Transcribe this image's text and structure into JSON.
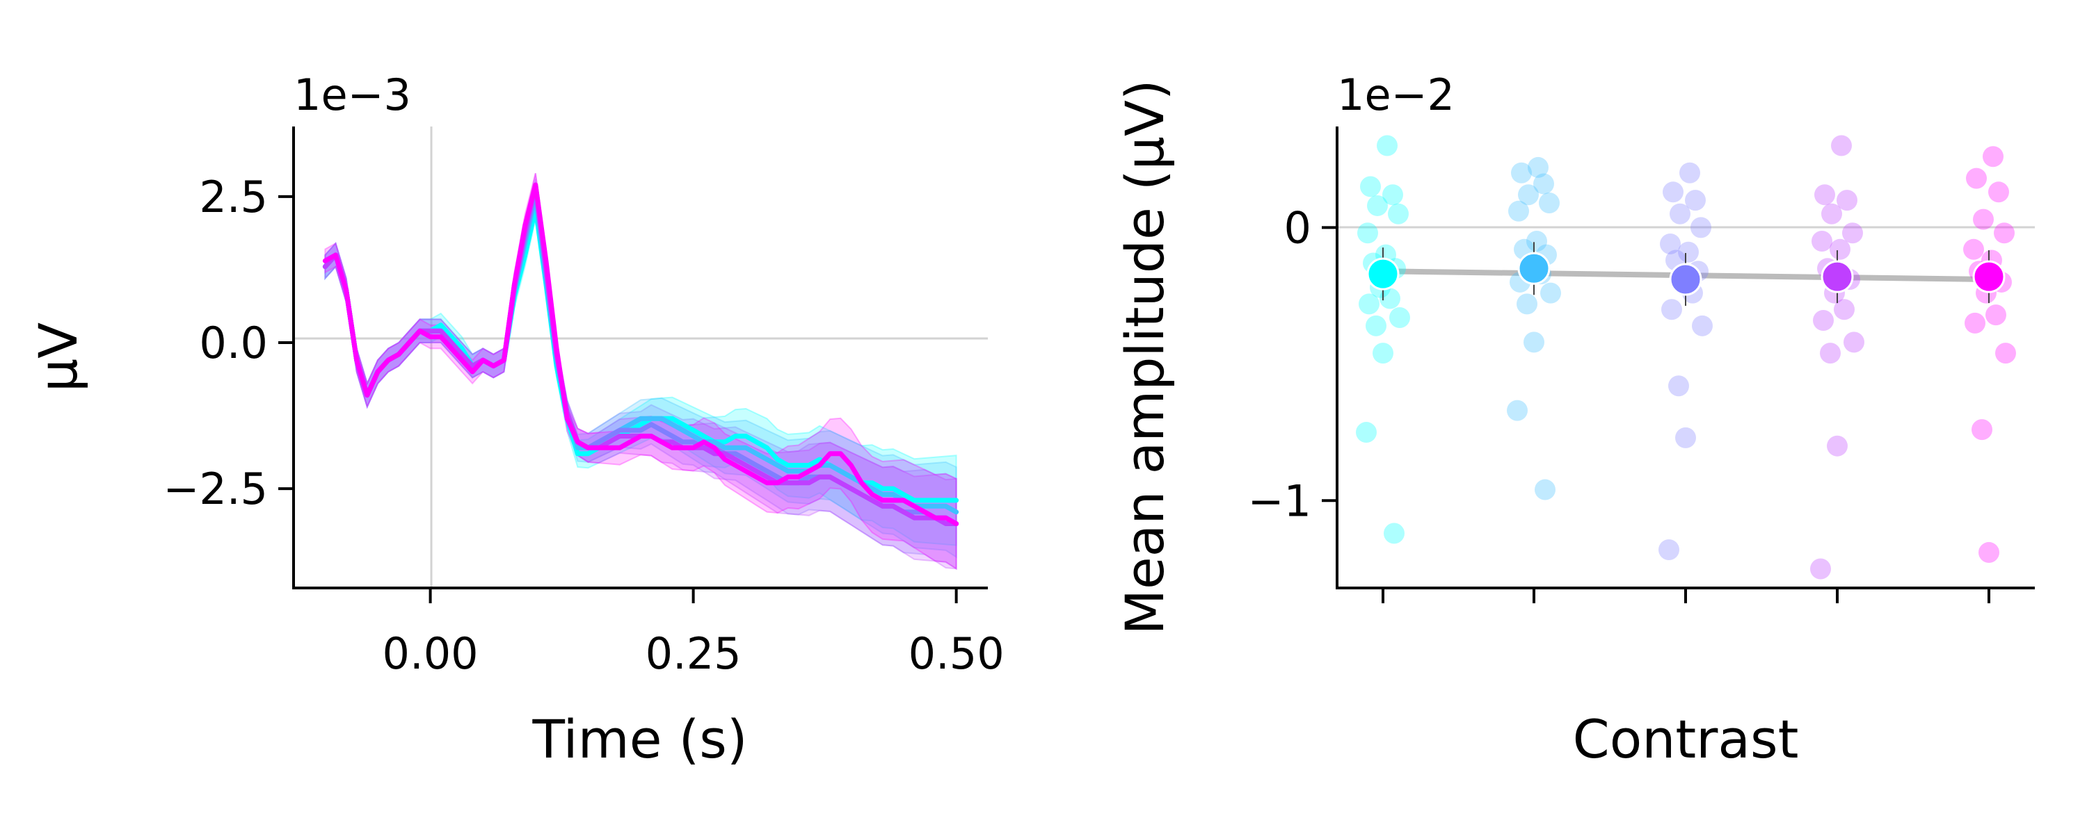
{
  "chart_data": [
    {
      "type": "line",
      "xlabel": "Time (s)",
      "ylabel": "μV",
      "y_multiplier_label": "1e−3",
      "xlim": [
        -0.13,
        0.53
      ],
      "ylim": [
        -4.2,
        3.7
      ],
      "x_ticks": [
        0.0,
        0.25,
        0.5
      ],
      "x_tick_labels": [
        "0.00",
        "0.25",
        "0.50"
      ],
      "y_ticks": [
        2.5,
        0.0,
        -2.5
      ],
      "y_tick_labels": [
        "2.5",
        "0.0",
        "−2.5"
      ],
      "reference_lines": {
        "x": 0,
        "y": 0
      },
      "x": [
        -0.1,
        -0.09,
        -0.08,
        -0.07,
        -0.06,
        -0.05,
        -0.04,
        -0.03,
        -0.02,
        -0.01,
        0.0,
        0.01,
        0.02,
        0.03,
        0.04,
        0.05,
        0.06,
        0.07,
        0.08,
        0.09,
        0.1,
        0.11,
        0.12,
        0.13,
        0.14,
        0.15,
        0.16,
        0.17,
        0.18,
        0.19,
        0.2,
        0.21,
        0.22,
        0.23,
        0.24,
        0.25,
        0.26,
        0.27,
        0.28,
        0.29,
        0.3,
        0.31,
        0.32,
        0.33,
        0.34,
        0.35,
        0.36,
        0.37,
        0.38,
        0.39,
        0.4,
        0.41,
        0.42,
        0.43,
        0.44,
        0.45,
        0.46,
        0.47,
        0.48,
        0.49,
        0.5
      ],
      "series": [
        {
          "color": "#00ffff",
          "values": [
            1.3,
            1.5,
            0.9,
            -0.3,
            -0.9,
            -0.5,
            -0.3,
            -0.2,
            0.0,
            0.2,
            0.2,
            0.3,
            0.1,
            -0.1,
            -0.4,
            -0.3,
            -0.4,
            -0.3,
            0.8,
            1.5,
            2.3,
            1.0,
            -0.4,
            -1.3,
            -1.9,
            -1.9,
            -1.8,
            -1.7,
            -1.6,
            -1.5,
            -1.4,
            -1.3,
            -1.3,
            -1.3,
            -1.4,
            -1.5,
            -1.6,
            -1.7,
            -1.7,
            -1.6,
            -1.6,
            -1.7,
            -1.8,
            -2.0,
            -2.1,
            -2.1,
            -2.1,
            -2.0,
            -2.1,
            -2.2,
            -2.3,
            -2.4,
            -2.4,
            -2.5,
            -2.5,
            -2.6,
            -2.7,
            -2.7,
            -2.7,
            -2.7,
            -2.7
          ]
        },
        {
          "color": "#3fbfff",
          "values": [
            1.3,
            1.5,
            0.9,
            -0.3,
            -0.9,
            -0.5,
            -0.3,
            -0.2,
            0.0,
            0.2,
            0.2,
            0.2,
            0.0,
            -0.2,
            -0.4,
            -0.3,
            -0.4,
            -0.3,
            0.9,
            1.7,
            2.5,
            1.1,
            -0.3,
            -1.2,
            -1.8,
            -1.8,
            -1.7,
            -1.6,
            -1.5,
            -1.4,
            -1.3,
            -1.3,
            -1.3,
            -1.4,
            -1.5,
            -1.6,
            -1.7,
            -1.7,
            -1.8,
            -1.8,
            -1.8,
            -1.9,
            -2.0,
            -2.1,
            -2.2,
            -2.2,
            -2.2,
            -2.1,
            -2.1,
            -2.2,
            -2.3,
            -2.4,
            -2.5,
            -2.6,
            -2.6,
            -2.7,
            -2.8,
            -2.8,
            -2.8,
            -2.8,
            -2.9
          ]
        },
        {
          "color": "#7f7fff",
          "values": [
            1.3,
            1.5,
            0.9,
            -0.3,
            -0.9,
            -0.5,
            -0.3,
            -0.2,
            0.0,
            0.2,
            0.2,
            0.2,
            0.0,
            -0.2,
            -0.4,
            -0.3,
            -0.4,
            -0.3,
            0.9,
            1.8,
            2.6,
            1.2,
            -0.2,
            -1.2,
            -1.7,
            -1.8,
            -1.7,
            -1.6,
            -1.5,
            -1.5,
            -1.5,
            -1.4,
            -1.5,
            -1.6,
            -1.7,
            -1.7,
            -1.8,
            -1.8,
            -1.9,
            -1.9,
            -2.0,
            -2.1,
            -2.2,
            -2.3,
            -2.4,
            -2.4,
            -2.3,
            -2.3,
            -2.3,
            -2.4,
            -2.5,
            -2.6,
            -2.7,
            -2.8,
            -2.8,
            -2.9,
            -2.9,
            -2.9,
            -3.0,
            -3.0,
            -3.1
          ]
        },
        {
          "color": "#bf3fff",
          "values": [
            1.3,
            1.5,
            0.9,
            -0.3,
            -0.9,
            -0.5,
            -0.3,
            -0.2,
            0.0,
            0.2,
            0.2,
            0.2,
            0.0,
            -0.2,
            -0.4,
            -0.3,
            -0.4,
            -0.3,
            1.0,
            1.9,
            2.7,
            1.3,
            -0.2,
            -1.2,
            -1.7,
            -1.8,
            -1.8,
            -1.7,
            -1.6,
            -1.6,
            -1.6,
            -1.6,
            -1.7,
            -1.7,
            -1.8,
            -1.8,
            -1.8,
            -1.9,
            -1.9,
            -2.0,
            -2.1,
            -2.2,
            -2.3,
            -2.4,
            -2.4,
            -2.4,
            -2.4,
            -2.3,
            -2.3,
            -2.4,
            -2.5,
            -2.6,
            -2.7,
            -2.8,
            -2.8,
            -2.9,
            -3.0,
            -3.0,
            -3.0,
            -3.1,
            -3.1
          ]
        },
        {
          "color": "#ff00ff",
          "values": [
            1.4,
            1.5,
            0.9,
            -0.3,
            -0.9,
            -0.5,
            -0.3,
            -0.2,
            0.0,
            0.2,
            0.1,
            0.1,
            -0.1,
            -0.3,
            -0.5,
            -0.3,
            -0.4,
            -0.3,
            1.0,
            2.0,
            2.7,
            1.4,
            -0.1,
            -1.3,
            -1.7,
            -1.8,
            -1.8,
            -1.8,
            -1.8,
            -1.7,
            -1.6,
            -1.6,
            -1.7,
            -1.8,
            -1.8,
            -1.8,
            -1.7,
            -1.8,
            -2.0,
            -2.1,
            -2.2,
            -2.3,
            -2.4,
            -2.4,
            -2.3,
            -2.3,
            -2.2,
            -2.1,
            -1.9,
            -1.9,
            -2.1,
            -2.4,
            -2.6,
            -2.7,
            -2.7,
            -2.7,
            -2.8,
            -2.9,
            -3.0,
            -3.0,
            -3.1
          ]
        }
      ]
    },
    {
      "type": "scatter",
      "xlabel": "Contrast",
      "ylabel": "Mean amplitude (μV)",
      "y_multiplier_label": "1e−2",
      "ylim": [
        -1.32,
        0.37
      ],
      "y_ticks": [
        0,
        -1
      ],
      "y_tick_labels": [
        "0",
        "−1"
      ],
      "reference_lines": {
        "y": 0
      },
      "categories": [
        "",
        "",
        "",
        "",
        ""
      ],
      "colors": [
        "#00ffff",
        "#3fbfff",
        "#7f7fff",
        "#bf3fff",
        "#ff00ff"
      ],
      "means": [
        -0.17,
        -0.15,
        -0.19,
        -0.18,
        -0.18
      ],
      "trend": [
        -0.16,
        -0.19
      ],
      "points": [
        [
          0.3,
          0.15,
          0.12,
          0.08,
          0.05,
          -0.02,
          -0.1,
          -0.13,
          -0.15,
          -0.22,
          -0.26,
          -0.28,
          -0.33,
          -0.36,
          -0.46,
          -0.75,
          -1.12
        ],
        [
          0.22,
          0.2,
          0.16,
          0.12,
          0.09,
          0.06,
          -0.05,
          -0.08,
          -0.1,
          -0.13,
          -0.17,
          -0.2,
          -0.24,
          -0.28,
          -0.42,
          -0.67,
          -0.96
        ],
        [
          0.2,
          0.13,
          0.1,
          0.05,
          0.0,
          -0.06,
          -0.09,
          -0.12,
          -0.16,
          -0.2,
          -0.24,
          -0.3,
          -0.36,
          -0.58,
          -0.77,
          -1.18
        ],
        [
          0.3,
          0.12,
          0.1,
          0.05,
          -0.02,
          -0.05,
          -0.08,
          -0.15,
          -0.19,
          -0.24,
          -0.3,
          -0.34,
          -0.42,
          -0.46,
          -0.8,
          -1.25
        ],
        [
          0.26,
          0.18,
          0.13,
          0.03,
          -0.02,
          -0.08,
          -0.12,
          -0.16,
          -0.2,
          -0.24,
          -0.32,
          -0.35,
          -0.46,
          -0.74,
          -1.19
        ]
      ]
    }
  ]
}
